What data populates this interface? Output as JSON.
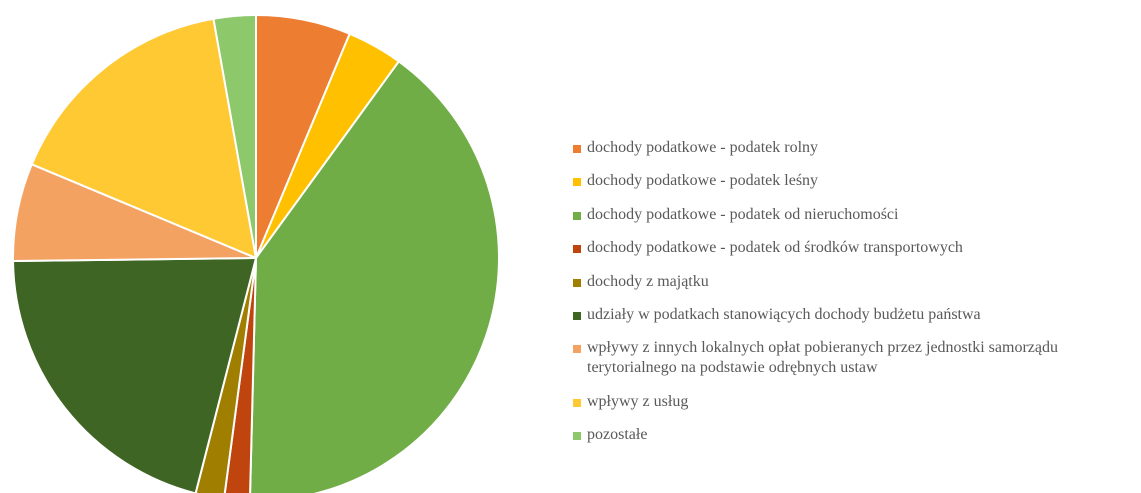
{
  "chart_data": {
    "type": "pie",
    "title": "",
    "legend_position": "right",
    "series": [
      {
        "values": [
          6.3,
          3.7,
          40.4,
          1.7,
          1.9,
          20.8,
          6.5,
          15.9,
          2.8
        ],
        "colors": [
          "#ED7D31",
          "#FFC000",
          "#70AD47",
          "#C0440D",
          "#A07F00",
          "#3F6524",
          "#F4A261",
          "#FFC933",
          "#8DC86A"
        ]
      }
    ],
    "categories": [
      "dochody podatkowe - podatek rolny",
      "dochody podatkowe - podatek leśny",
      "dochody podatkowe - podatek od nieruchomości",
      "dochody podatkowe - podatek od środków transportowych",
      "dochody z majątku",
      "udziały w podatkach stanowiących dochody budżetu państwa",
      "wpływy z innych lokalnych opłat pobieranych przez jednostki samorządu terytorialnego na podstawie odrębnych ustaw",
      "wpływy z usług",
      "pozostałe"
    ]
  }
}
